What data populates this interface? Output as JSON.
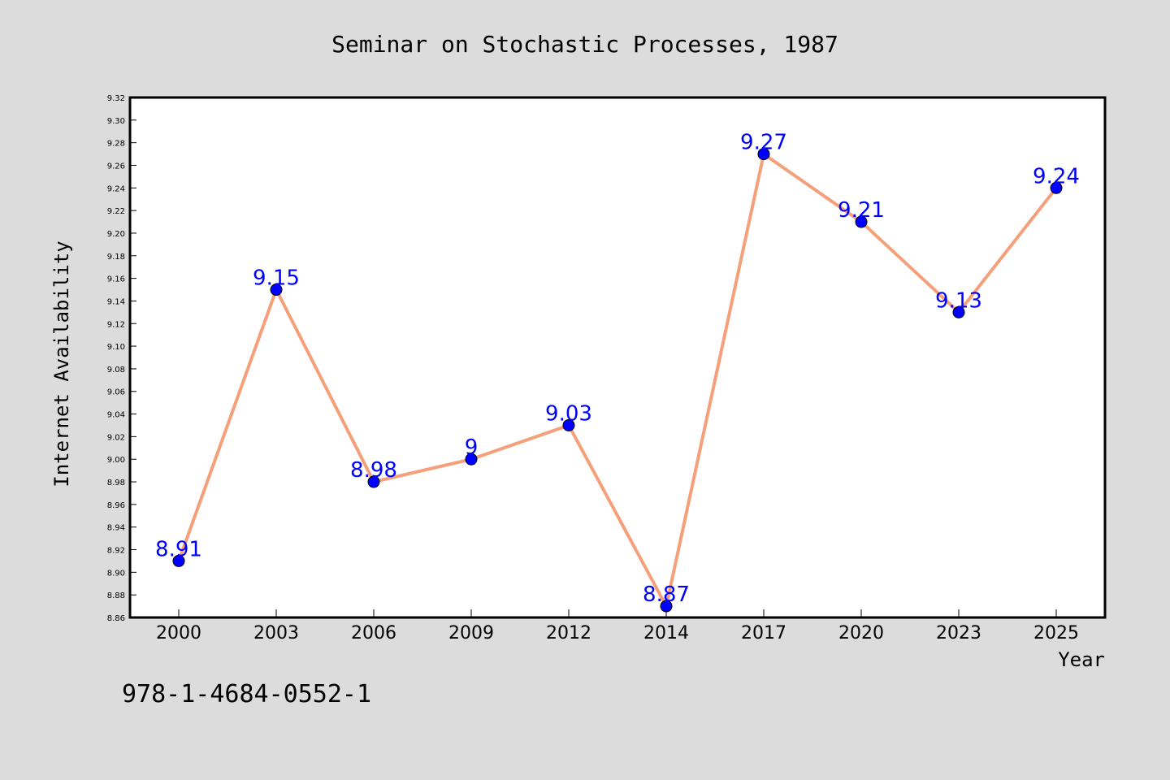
{
  "chart_data": {
    "type": "line",
    "title": "Seminar on Stochastic Processes, 1987",
    "xlabel": "Year",
    "ylabel": "Internet Availability",
    "categories": [
      "2000",
      "2003",
      "2006",
      "2009",
      "2012",
      "2014",
      "2017",
      "2020",
      "2023",
      "2025"
    ],
    "series": [
      {
        "values": [
          8.91,
          9.15,
          8.98,
          9.0,
          9.03,
          8.87,
          9.27,
          9.21,
          9.13,
          9.24
        ],
        "data_labels": [
          "8.91",
          "9.15",
          "8.98",
          "9",
          "9.03",
          "8.87",
          "9.27",
          "9.21",
          "9.13",
          "9.24"
        ],
        "line_color": "#f4a07a",
        "marker_color": "#0000ff"
      }
    ],
    "ylim": [
      8.86,
      9.32
    ],
    "yticks": [
      "8.86",
      "8.88",
      "8.90",
      "8.92",
      "8.94",
      "8.96",
      "8.98",
      "9.00",
      "9.02",
      "9.04",
      "9.06",
      "9.08",
      "9.10",
      "9.12",
      "9.14",
      "9.16",
      "9.18",
      "9.20",
      "9.22",
      "9.24",
      "9.26",
      "9.28",
      "9.30",
      "9.32"
    ],
    "grid": false,
    "legend": "none",
    "footer_text": "978-1-4684-0552-1",
    "colors": {
      "background": "#dcdcdc",
      "plot_background": "#ffffff",
      "data_label": "#0000ff"
    }
  }
}
